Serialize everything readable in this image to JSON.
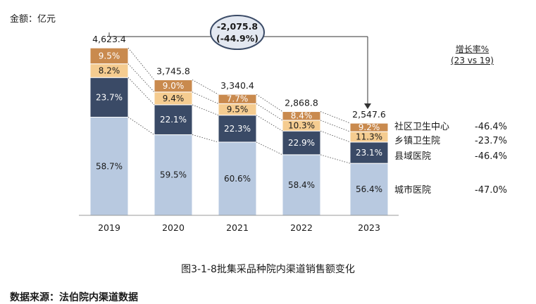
{
  "unit_label": "金额：亿元",
  "caption": "图3-1-8批集采品种院内渠道销售额变化",
  "source": "数据来源：法伯院内渠道数据",
  "growth_header": {
    "line1": "增长率%",
    "line2": "(23 vs 19)"
  },
  "callout": {
    "line1": "-2,075.8",
    "line2": "(-44.9%)"
  },
  "colors": {
    "city": "#b8c9e0",
    "county": "#3a4a66",
    "town": "#f5cc90",
    "community": "#c98a4e",
    "callout_bg": "#e3e8f1",
    "callout_border": "#3a4a66"
  },
  "chart_data": {
    "type": "bar",
    "stacked": true,
    "categories": [
      "2019",
      "2020",
      "2021",
      "2022",
      "2023"
    ],
    "totals": [
      "4,623.4",
      "3,745.8",
      "3,340.4",
      "2,868.8",
      "2,547.6"
    ],
    "total_values": [
      4623.4,
      3745.8,
      3340.4,
      2868.8,
      2547.6
    ],
    "series": [
      {
        "name": "城市医院",
        "shares": [
          58.7,
          59.5,
          60.6,
          58.4,
          56.4
        ],
        "labels": [
          "58.7%",
          "59.5%",
          "60.6%",
          "58.4%",
          "56.4%"
        ],
        "growth": "-47.0%"
      },
      {
        "name": "县域医院",
        "shares": [
          23.7,
          22.1,
          22.3,
          22.9,
          23.1
        ],
        "labels": [
          "23.7%",
          "22.1%",
          "22.3%",
          "22.9%",
          "23.1%"
        ],
        "growth": "-46.4%"
      },
      {
        "name": "乡镇卫生院",
        "shares": [
          8.2,
          9.4,
          9.5,
          10.3,
          11.3
        ],
        "labels": [
          "8.2%",
          "9.4%",
          "9.5%",
          "10.3%",
          "11.3%"
        ],
        "growth": "-23.7%"
      },
      {
        "name": "社区卫生中心",
        "shares": [
          9.5,
          9.0,
          7.7,
          8.4,
          9.2
        ],
        "labels": [
          "9.5%",
          "9.0%",
          "7.7%",
          "8.4%",
          "9.2%"
        ],
        "growth": "-46.4%"
      }
    ],
    "ylim": [
      0,
      5000
    ]
  }
}
